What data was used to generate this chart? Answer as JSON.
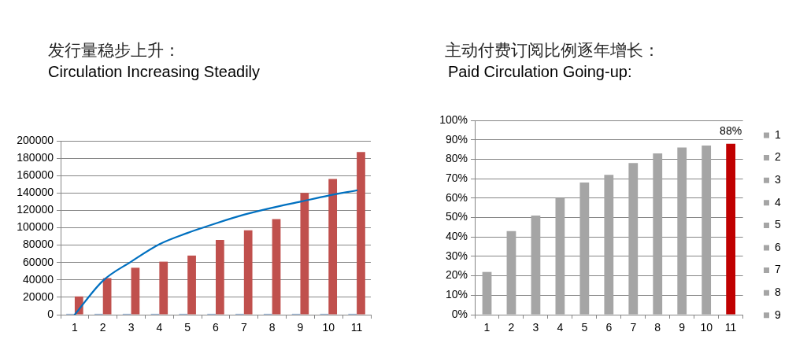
{
  "chart_data": [
    {
      "type": "bar",
      "title": "发行量稳步上升：",
      "subtitle": "Circulation Increasing Steadily",
      "categories": [
        "1",
        "2",
        "3",
        "4",
        "5",
        "6",
        "7",
        "8",
        "9",
        "10",
        "11"
      ],
      "series": [
        {
          "color": "#4f81bd",
          "values": [
            1000,
            1000,
            1000,
            1000,
            1000,
            1000,
            1000,
            1000,
            1000,
            1000,
            1000
          ]
        },
        {
          "color": "#c0504d",
          "values": [
            21000,
            42000,
            54000,
            61000,
            68000,
            86000,
            97000,
            110000,
            140000,
            156000,
            187000
          ]
        },
        {
          "type": "line",
          "color": "#0070c0",
          "values": [
            0,
            39000,
            61000,
            81000,
            94000,
            105000,
            115000,
            123000,
            130000,
            137000,
            143000
          ]
        }
      ],
      "ylim": [
        0,
        200000
      ],
      "yticks": [
        0,
        20000,
        40000,
        60000,
        80000,
        100000,
        120000,
        140000,
        160000,
        180000,
        200000
      ],
      "grid": "y"
    },
    {
      "type": "bar",
      "title": "主动付费订阅比例逐年增长：",
      "subtitle": "Paid Circulation Going-up:",
      "categories": [
        "1",
        "2",
        "3",
        "4",
        "5",
        "6",
        "7",
        "8",
        "9",
        "10",
        "11"
      ],
      "series": [
        {
          "name": "1",
          "color": "#a5a5a5",
          "values": [
            22,
            null,
            null,
            null,
            null,
            null,
            null,
            null,
            null,
            null,
            null
          ]
        },
        {
          "name": "2",
          "color": "#a5a5a5",
          "values": [
            null,
            43,
            null,
            null,
            null,
            null,
            null,
            null,
            null,
            null,
            null
          ]
        },
        {
          "name": "3",
          "color": "#a5a5a5",
          "values": [
            null,
            null,
            51,
            null,
            null,
            null,
            null,
            null,
            null,
            null,
            null
          ]
        },
        {
          "name": "4",
          "color": "#a5a5a5",
          "values": [
            null,
            null,
            null,
            60,
            null,
            null,
            null,
            null,
            null,
            null,
            null
          ]
        },
        {
          "name": "5",
          "color": "#a5a5a5",
          "values": [
            null,
            null,
            null,
            null,
            68,
            null,
            null,
            null,
            null,
            null,
            null
          ]
        },
        {
          "name": "6",
          "color": "#a5a5a5",
          "values": [
            null,
            null,
            null,
            null,
            null,
            72,
            null,
            null,
            null,
            null,
            null
          ]
        },
        {
          "name": "7",
          "color": "#a5a5a5",
          "values": [
            null,
            null,
            null,
            null,
            null,
            null,
            78,
            null,
            null,
            null,
            null
          ]
        },
        {
          "name": "8",
          "color": "#a5a5a5",
          "values": [
            null,
            null,
            null,
            null,
            null,
            null,
            null,
            83,
            null,
            null,
            null
          ]
        },
        {
          "name": "9",
          "color": "#a5a5a5",
          "values": [
            null,
            null,
            null,
            null,
            null,
            null,
            null,
            null,
            86,
            null,
            null
          ]
        },
        {
          "color": "#a5a5a5",
          "values": [
            null,
            null,
            null,
            null,
            null,
            null,
            null,
            null,
            null,
            87,
            null
          ]
        },
        {
          "color": "#c00000",
          "values": [
            null,
            null,
            null,
            null,
            null,
            null,
            null,
            null,
            null,
            null,
            88
          ],
          "value_labels": [
            null,
            null,
            null,
            null,
            null,
            null,
            null,
            null,
            null,
            null,
            "88%"
          ]
        }
      ],
      "ylim": [
        0,
        100
      ],
      "yticks": [
        {
          "value": 0,
          "label": "0%"
        },
        {
          "value": 10,
          "label": "10%"
        },
        {
          "value": 20,
          "label": "20%"
        },
        {
          "value": 30,
          "label": "30%"
        },
        {
          "value": 40,
          "label": "40%"
        },
        {
          "value": 50,
          "label": "50%"
        },
        {
          "value": 60,
          "label": "60%"
        },
        {
          "value": 70,
          "label": "70%"
        },
        {
          "value": 80,
          "label": "80%"
        },
        {
          "value": 90,
          "label": "90%"
        },
        {
          "value": 100,
          "label": "100%"
        }
      ],
      "grid": "y",
      "legend": "right"
    }
  ]
}
